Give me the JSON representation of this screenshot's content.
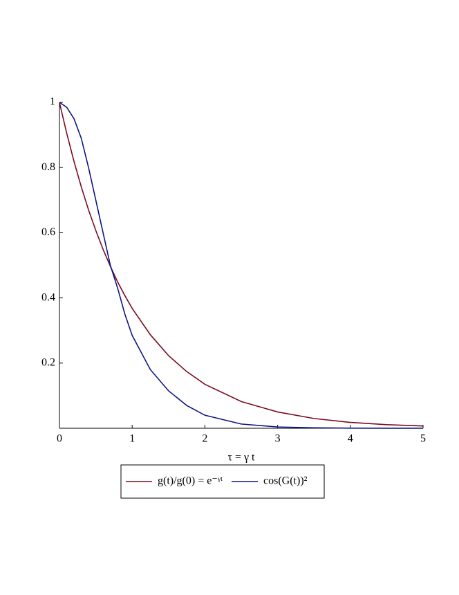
{
  "chart_data": {
    "type": "line",
    "x_label": "τ = γ t",
    "x": [
      0,
      0.1,
      0.2,
      0.3,
      0.4,
      0.5,
      0.6,
      0.7,
      0.8,
      0.9,
      1,
      1.25,
      1.5,
      1.75,
      2,
      2.5,
      3,
      3.5,
      4,
      4.5,
      5
    ],
    "series": [
      {
        "name": "g(t)/g(0) = e⁻ᵞᵗ",
        "color": "#7a0a1e",
        "values": [
          1,
          0.905,
          0.819,
          0.741,
          0.67,
          0.607,
          0.549,
          0.497,
          0.449,
          0.407,
          0.368,
          0.287,
          0.223,
          0.174,
          0.135,
          0.082,
          0.05,
          0.03,
          0.018,
          0.011,
          0.007
        ]
      },
      {
        "name": "cos(G(t))²",
        "color": "#0c1683",
        "values": [
          1,
          0.985,
          0.95,
          0.89,
          0.8,
          0.7,
          0.6,
          0.5,
          0.43,
          0.35,
          0.285,
          0.18,
          0.115,
          0.07,
          0.04,
          0.013,
          0.004,
          0.0015,
          0.0005,
          0.0002,
          0.0001
        ]
      }
    ],
    "xlim": [
      0,
      5
    ],
    "xticks": [
      0,
      1,
      2,
      3,
      4,
      5
    ],
    "ylim": [
      0,
      1
    ],
    "yticks": [
      0.2,
      0.4,
      0.6,
      0.8,
      1
    ],
    "legend": "bottom"
  }
}
